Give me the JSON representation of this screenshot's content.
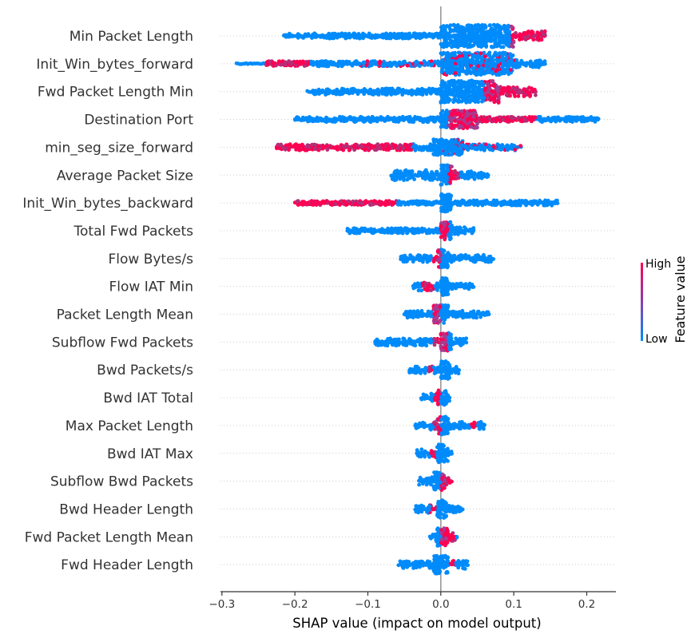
{
  "chart_data": {
    "type": "scatter",
    "subtype": "shap-beeswarm-summary",
    "xlabel": "SHAP value (impact on model output)",
    "xlim": [
      -0.302,
      0.24
    ],
    "x_ticks": [
      {
        "value": -0.3,
        "label": "−0.3"
      },
      {
        "value": -0.2,
        "label": "−0.2"
      },
      {
        "value": -0.1,
        "label": "−0.1"
      },
      {
        "value": 0.0,
        "label": "0.0"
      },
      {
        "value": 0.1,
        "label": "0.1"
      },
      {
        "value": 0.2,
        "label": "0.2"
      }
    ],
    "zero_line": 0.0,
    "grid": "dotted horizontal guide per feature",
    "colors": {
      "low": "#008bfb",
      "high": "#ff0052",
      "zero_line": "#999999",
      "axis": "#333333"
    },
    "colorbar": {
      "title": "Feature value",
      "high_label": "High",
      "low_label": "Low",
      "placement": "right"
    },
    "features": [
      {
        "name": "Min Packet Length",
        "min": -0.215,
        "max": 0.143,
        "dense": [
          [
            0.0,
            0.1,
            1.0
          ]
        ],
        "mid": [
          [
            -0.215,
            0.0,
            0.25
          ],
          [
            0.1,
            0.143,
            0.45
          ]
        ],
        "high": [
          [
            0.095,
            0.143
          ]
        ],
        "mixed": []
      },
      {
        "name": "Init_Win_bytes_forward",
        "min": -0.28,
        "max": 0.143,
        "dense": [
          [
            0.0,
            0.1,
            1.0
          ]
        ],
        "mid": [
          [
            -0.24,
            0.0,
            0.25
          ],
          [
            0.1,
            0.143,
            0.4
          ]
        ],
        "high": [
          [
            -0.24,
            -0.18
          ]
        ],
        "mixed": [
          [
            -0.12,
            0.1
          ]
        ]
      },
      {
        "name": "Fwd Packet Length Min",
        "min": -0.183,
        "max": 0.13,
        "dense": [
          [
            0.0,
            0.08,
            1.0
          ]
        ],
        "mid": [
          [
            -0.183,
            0.0,
            0.3
          ],
          [
            0.08,
            0.13,
            0.45
          ]
        ],
        "high": [
          [
            0.06,
            0.13
          ]
        ],
        "mixed": []
      },
      {
        "name": "Destination Port",
        "min": -0.2,
        "max": 0.216,
        "dense": [
          [
            0.0,
            0.05,
            0.8
          ]
        ],
        "mid": [
          [
            -0.2,
            0.0,
            0.25
          ],
          [
            0.05,
            0.216,
            0.25
          ]
        ],
        "high": [
          [
            0.01,
            0.13
          ]
        ],
        "mixed": []
      },
      {
        "name": "min_seg_size_forward",
        "min": -0.225,
        "max": 0.11,
        "dense": [
          [
            -0.01,
            0.03,
            0.7
          ]
        ],
        "mid": [
          [
            -0.225,
            -0.01,
            0.3
          ],
          [
            0.03,
            0.11,
            0.3
          ]
        ],
        "high": [
          [
            -0.225,
            -0.04
          ]
        ],
        "mixed": [
          [
            0.0,
            0.11
          ]
        ]
      },
      {
        "name": "Average Packet Size",
        "min": -0.068,
        "max": 0.065,
        "dense": [
          [
            0.0,
            0.015,
            0.9
          ]
        ],
        "mid": [
          [
            -0.068,
            0.0,
            0.5
          ],
          [
            0.015,
            0.065,
            0.4
          ]
        ],
        "high": [
          [
            0.01,
            0.025
          ]
        ],
        "mixed": []
      },
      {
        "name": "Init_Win_bytes_backward",
        "min": -0.2,
        "max": 0.16,
        "dense": [
          [
            0.0,
            0.015,
            0.8
          ]
        ],
        "mid": [
          [
            -0.2,
            0.0,
            0.2
          ],
          [
            0.015,
            0.16,
            0.25
          ]
        ],
        "high": [
          [
            -0.2,
            -0.06
          ]
        ],
        "mixed": []
      },
      {
        "name": "Total Fwd Packets",
        "min": -0.128,
        "max": 0.045,
        "dense": [
          [
            0.0,
            0.015,
            0.8
          ]
        ],
        "mid": [
          [
            -0.128,
            0.0,
            0.25
          ],
          [
            0.015,
            0.045,
            0.35
          ]
        ],
        "high": [
          [
            0.0,
            0.01
          ]
        ],
        "mixed": []
      },
      {
        "name": "Flow Bytes/s",
        "min": -0.055,
        "max": 0.072,
        "dense": [
          [
            -0.005,
            0.01,
            0.8
          ]
        ],
        "mid": [
          [
            -0.055,
            -0.005,
            0.35
          ],
          [
            0.01,
            0.072,
            0.35
          ]
        ],
        "high": [
          [
            -0.01,
            0.0
          ]
        ],
        "mixed": []
      },
      {
        "name": "Flow IAT Min",
        "min": -0.038,
        "max": 0.045,
        "dense": [
          [
            0.0,
            0.01,
            0.8
          ]
        ],
        "mid": [
          [
            -0.038,
            0.0,
            0.4
          ],
          [
            0.01,
            0.045,
            0.3
          ]
        ],
        "high": [
          [
            -0.025,
            -0.01
          ]
        ],
        "mixed": []
      },
      {
        "name": "Packet Length Mean",
        "min": -0.05,
        "max": 0.066,
        "dense": [
          [
            -0.01,
            0.01,
            0.8
          ]
        ],
        "mid": [
          [
            -0.05,
            -0.01,
            0.35
          ],
          [
            0.01,
            0.066,
            0.35
          ]
        ],
        "high": [
          [
            -0.01,
            0.0
          ]
        ],
        "mixed": []
      },
      {
        "name": "Subflow Fwd Packets",
        "min": -0.09,
        "max": 0.035,
        "dense": [
          [
            0.0,
            0.015,
            0.8
          ]
        ],
        "mid": [
          [
            -0.09,
            0.0,
            0.35
          ],
          [
            0.015,
            0.035,
            0.35
          ]
        ],
        "high": [
          [
            -0.01,
            0.01
          ]
        ],
        "mixed": []
      },
      {
        "name": "Bwd Packets/s",
        "min": -0.043,
        "max": 0.025,
        "dense": [
          [
            0.0,
            0.012,
            0.8
          ]
        ],
        "mid": [
          [
            -0.043,
            0.0,
            0.35
          ],
          [
            0.012,
            0.025,
            0.4
          ]
        ],
        "high": [
          [
            -0.02,
            -0.01
          ]
        ],
        "mixed": []
      },
      {
        "name": "Bwd IAT Total",
        "min": -0.027,
        "max": 0.012,
        "dense": [
          [
            -0.005,
            0.008,
            0.7
          ]
        ],
        "mid": [
          [
            -0.027,
            -0.005,
            0.4
          ],
          [
            0.008,
            0.012,
            0.4
          ]
        ],
        "high": [
          [
            -0.01,
            0.0
          ]
        ],
        "mixed": []
      },
      {
        "name": "Max Packet Length",
        "min": -0.035,
        "max": 0.06,
        "dense": [
          [
            -0.005,
            0.01,
            0.8
          ]
        ],
        "mid": [
          [
            -0.035,
            -0.005,
            0.4
          ],
          [
            0.01,
            0.06,
            0.35
          ]
        ],
        "high": [
          [
            -0.01,
            0.0
          ],
          [
            0.04,
            0.05
          ]
        ],
        "mixed": []
      },
      {
        "name": "Bwd IAT Max",
        "min": -0.033,
        "max": 0.015,
        "dense": [
          [
            -0.005,
            0.01,
            0.8
          ]
        ],
        "mid": [
          [
            -0.033,
            -0.005,
            0.4
          ],
          [
            0.01,
            0.015,
            0.4
          ]
        ],
        "high": [
          [
            -0.015,
            -0.005
          ]
        ],
        "mixed": []
      },
      {
        "name": "Subflow Bwd Packets",
        "min": -0.03,
        "max": 0.015,
        "dense": [
          [
            -0.01,
            0.005,
            0.8
          ]
        ],
        "mid": [
          [
            -0.03,
            -0.01,
            0.4
          ],
          [
            0.005,
            0.015,
            0.4
          ]
        ],
        "high": [
          [
            0.0,
            0.015
          ]
        ],
        "mixed": []
      },
      {
        "name": "Bwd Header Length",
        "min": -0.035,
        "max": 0.03,
        "dense": [
          [
            -0.005,
            0.008,
            0.8
          ]
        ],
        "mid": [
          [
            -0.035,
            -0.005,
            0.4
          ],
          [
            0.008,
            0.03,
            0.35
          ]
        ],
        "high": [
          [
            -0.015,
            -0.005
          ]
        ],
        "mixed": []
      },
      {
        "name": "Fwd Packet Length Mean",
        "min": -0.015,
        "max": 0.022,
        "dense": [
          [
            -0.005,
            0.01,
            0.8
          ]
        ],
        "mid": [
          [
            -0.015,
            -0.005,
            0.5
          ],
          [
            0.01,
            0.022,
            0.45
          ]
        ],
        "high": [
          [
            0.0,
            0.02
          ]
        ],
        "mixed": []
      },
      {
        "name": "Fwd Header Length",
        "min": -0.058,
        "max": 0.037,
        "dense": [
          [
            -0.01,
            0.01,
            0.8
          ]
        ],
        "mid": [
          [
            -0.058,
            -0.01,
            0.35
          ],
          [
            0.01,
            0.037,
            0.4
          ]
        ],
        "high": [
          [
            0.01,
            0.02
          ]
        ],
        "mixed": []
      }
    ]
  }
}
